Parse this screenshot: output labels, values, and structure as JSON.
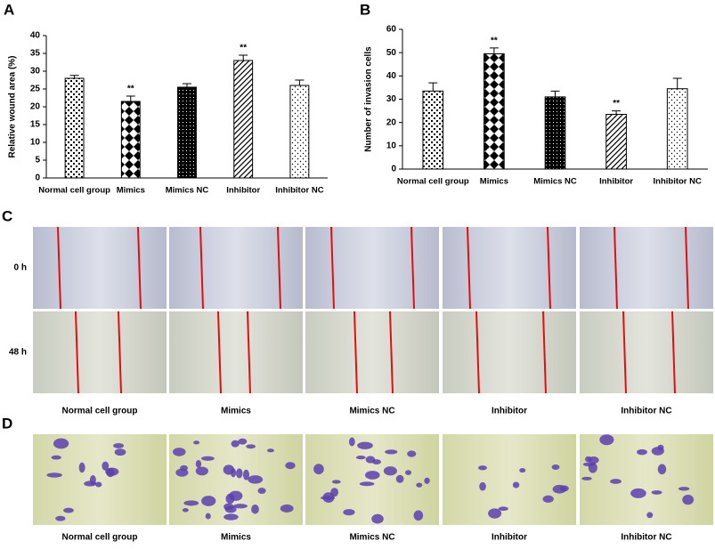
{
  "chart_data": [
    {
      "type": "bar",
      "panel": "A",
      "ylabel": "Relative wound area (%)",
      "categories": [
        "Normal cell group",
        "Mimics",
        "Mimics NC",
        "Inhibitor",
        "Inhibitor NC"
      ],
      "values": [
        28,
        21.5,
        25.5,
        33,
        26
      ],
      "errors": [
        0.8,
        1.5,
        1,
        1.5,
        1.5
      ],
      "annotations": [
        null,
        "**",
        null,
        "**",
        null
      ],
      "ylim": [
        0,
        40
      ],
      "yticks": [
        0,
        5,
        10,
        15,
        20,
        25,
        30,
        35,
        40
      ]
    },
    {
      "type": "bar",
      "panel": "B",
      "ylabel": "Number of invasion cells",
      "categories": [
        "Normal cell group",
        "Mimics",
        "Mimics NC",
        "Inhibitor",
        "Inhibitor NC"
      ],
      "values": [
        33.5,
        49.5,
        31,
        23.5,
        34.5
      ],
      "errors": [
        3.5,
        2.5,
        2.5,
        1.5,
        4.5
      ],
      "annotations": [
        null,
        "**",
        null,
        "**",
        null
      ],
      "ylim": [
        0,
        60
      ],
      "yticks": [
        0,
        10,
        20,
        30,
        40,
        50,
        60
      ]
    }
  ],
  "panel_c": {
    "label": "C",
    "rows": [
      "0 h",
      "48 h"
    ],
    "columns": [
      "Normal cell group",
      "Mimics",
      "Mimics NC",
      "Inhibitor",
      "Inhibitor NC"
    ]
  },
  "panel_d": {
    "label": "D",
    "columns": [
      "Normal cell group",
      "Mimics",
      "Mimics NC",
      "Inhibitor",
      "Inhibitor NC"
    ]
  }
}
